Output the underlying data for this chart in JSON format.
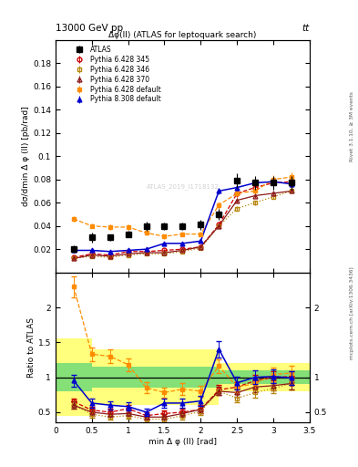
{
  "title_top": "13000 GeV pp",
  "title_top_right": "tt",
  "main_title": "Δφ(ll) (ATLAS for leptoquark search)",
  "ylabel_main": "dσ/dmin Δ φ (ll) [pb/rad]",
  "ylabel_ratio": "Ratio to ATLAS",
  "xlabel": "min Δ φ (ll) [rad]",
  "right_label_top": "Rivet 3.1.10, ≥ 3M events",
  "right_label_bottom": "mcplots.cern.ch [arXiv:1306.3436]",
  "watermark": "ATLAS_2019_I1718132",
  "atlas_x": [
    0.25,
    0.5,
    0.75,
    1.0,
    1.25,
    1.5,
    1.75,
    2.0,
    2.25,
    2.5,
    2.75,
    3.0,
    3.25
  ],
  "atlas_y": [
    0.02,
    0.03,
    0.03,
    0.033,
    0.04,
    0.04,
    0.04,
    0.041,
    0.05,
    0.079,
    0.077,
    0.077,
    0.077
  ],
  "atlas_yerr": [
    0.003,
    0.004,
    0.003,
    0.003,
    0.004,
    0.003,
    0.003,
    0.004,
    0.005,
    0.006,
    0.006,
    0.006,
    0.006
  ],
  "py345_x": [
    0.25,
    0.5,
    0.75,
    1.0,
    1.25,
    1.5,
    1.75,
    2.0,
    2.25,
    2.5,
    2.75,
    3.0,
    3.25
  ],
  "py345_y": [
    0.013,
    0.016,
    0.015,
    0.018,
    0.018,
    0.019,
    0.02,
    0.022,
    0.041,
    0.068,
    0.073,
    0.077,
    0.078
  ],
  "py345_yerr": [
    0.001,
    0.001,
    0.001,
    0.001,
    0.001,
    0.001,
    0.001,
    0.001,
    0.002,
    0.003,
    0.003,
    0.003,
    0.003
  ],
  "py345_color": "#cc0000",
  "py345_linestyle": "--",
  "py346_x": [
    0.25,
    0.5,
    0.75,
    1.0,
    1.25,
    1.5,
    1.75,
    2.0,
    2.25,
    2.5,
    2.75,
    3.0,
    3.25
  ],
  "py346_y": [
    0.012,
    0.014,
    0.013,
    0.015,
    0.016,
    0.016,
    0.018,
    0.021,
    0.04,
    0.055,
    0.06,
    0.065,
    0.07
  ],
  "py346_yerr": [
    0.001,
    0.001,
    0.001,
    0.001,
    0.001,
    0.001,
    0.001,
    0.001,
    0.002,
    0.002,
    0.002,
    0.002,
    0.002
  ],
  "py346_color": "#b8860b",
  "py346_linestyle": ":",
  "py370_x": [
    0.25,
    0.5,
    0.75,
    1.0,
    1.25,
    1.5,
    1.75,
    2.0,
    2.25,
    2.5,
    2.75,
    3.0,
    3.25
  ],
  "py370_y": [
    0.012,
    0.015,
    0.014,
    0.016,
    0.017,
    0.017,
    0.019,
    0.022,
    0.04,
    0.062,
    0.066,
    0.068,
    0.07
  ],
  "py370_yerr": [
    0.001,
    0.001,
    0.001,
    0.001,
    0.001,
    0.001,
    0.001,
    0.001,
    0.002,
    0.002,
    0.002,
    0.002,
    0.002
  ],
  "py370_color": "#8b1a1a",
  "py370_linestyle": "-",
  "pydef_x": [
    0.25,
    0.5,
    0.75,
    1.0,
    1.25,
    1.5,
    1.75,
    2.0,
    2.25,
    2.5,
    2.75,
    3.0,
    3.25
  ],
  "pydef_y": [
    0.046,
    0.04,
    0.039,
    0.039,
    0.034,
    0.031,
    0.033,
    0.033,
    0.058,
    0.068,
    0.07,
    0.08,
    0.082
  ],
  "pydef_yerr": [
    0.002,
    0.002,
    0.002,
    0.002,
    0.002,
    0.002,
    0.002,
    0.002,
    0.003,
    0.003,
    0.003,
    0.004,
    0.004
  ],
  "pydef_color": "#ff8c00",
  "pydef_linestyle": "--",
  "py8def_x": [
    0.25,
    0.5,
    0.75,
    1.0,
    1.25,
    1.5,
    1.75,
    2.0,
    2.25,
    2.5,
    2.75,
    3.0,
    3.25
  ],
  "py8def_y": [
    0.019,
    0.019,
    0.018,
    0.019,
    0.02,
    0.025,
    0.025,
    0.027,
    0.07,
    0.073,
    0.077,
    0.078,
    0.076
  ],
  "py8def_yerr": [
    0.001,
    0.001,
    0.001,
    0.001,
    0.001,
    0.001,
    0.001,
    0.001,
    0.003,
    0.003,
    0.003,
    0.003,
    0.003
  ],
  "py8def_color": "#0000cd",
  "py8def_linestyle": "-",
  "ratio_py345": [
    0.65,
    0.53,
    0.5,
    0.55,
    0.45,
    0.48,
    0.5,
    0.54,
    0.82,
    0.86,
    0.95,
    1.0,
    1.01
  ],
  "ratio_py346": [
    0.6,
    0.47,
    0.43,
    0.45,
    0.4,
    0.4,
    0.45,
    0.51,
    0.8,
    0.7,
    0.78,
    0.84,
    0.91
  ],
  "ratio_py370": [
    0.6,
    0.5,
    0.47,
    0.48,
    0.43,
    0.43,
    0.48,
    0.54,
    0.8,
    0.78,
    0.86,
    0.88,
    0.91
  ],
  "ratio_pydef": [
    2.3,
    1.33,
    1.3,
    1.18,
    0.85,
    0.78,
    0.83,
    0.8,
    1.16,
    0.86,
    0.91,
    1.04,
    1.06
  ],
  "ratio_py8def": [
    0.95,
    0.63,
    0.6,
    0.58,
    0.5,
    0.63,
    0.63,
    0.66,
    1.4,
    0.92,
    1.0,
    1.01,
    0.99
  ],
  "ratio_py345_err": [
    0.05,
    0.05,
    0.05,
    0.05,
    0.05,
    0.05,
    0.05,
    0.06,
    0.07,
    0.07,
    0.08,
    0.08,
    0.08
  ],
  "ratio_py346_err": [
    0.05,
    0.05,
    0.04,
    0.04,
    0.04,
    0.04,
    0.05,
    0.05,
    0.06,
    0.06,
    0.07,
    0.07,
    0.08
  ],
  "ratio_py370_err": [
    0.05,
    0.05,
    0.04,
    0.04,
    0.04,
    0.04,
    0.05,
    0.05,
    0.06,
    0.06,
    0.07,
    0.07,
    0.08
  ],
  "ratio_pydef_err": [
    0.15,
    0.1,
    0.1,
    0.09,
    0.08,
    0.07,
    0.08,
    0.08,
    0.1,
    0.08,
    0.09,
    0.1,
    0.1
  ],
  "ratio_py8def_err": [
    0.08,
    0.06,
    0.06,
    0.06,
    0.05,
    0.06,
    0.06,
    0.07,
    0.12,
    0.09,
    0.1,
    0.1,
    0.1
  ],
  "band_edges": [
    0.0,
    0.5,
    1.25,
    1.75,
    2.25,
    3.5
  ],
  "band_yellow_half": [
    0.55,
    0.4,
    0.4,
    0.4,
    0.2,
    0.2
  ],
  "band_green_half": [
    0.2,
    0.15,
    0.15,
    0.15,
    0.1,
    0.1
  ],
  "ylim_main": [
    0.0,
    0.2
  ],
  "ylim_ratio": [
    0.35,
    2.5
  ],
  "xlim": [
    0.0,
    3.5
  ],
  "yticks_main": [
    0.02,
    0.04,
    0.06,
    0.08,
    0.1,
    0.12,
    0.14,
    0.16,
    0.18
  ],
  "ytick_labels_main": [
    "0.02",
    "0.04",
    "0.06",
    "0.08",
    "0.1",
    "0.12",
    "0.14",
    "0.16",
    "0.18"
  ],
  "yticks_ratio": [
    0.5,
    1.0,
    1.5,
    2.0
  ],
  "xticks": [
    0.0,
    0.5,
    1.0,
    1.5,
    2.0,
    2.5,
    3.0,
    3.5
  ]
}
